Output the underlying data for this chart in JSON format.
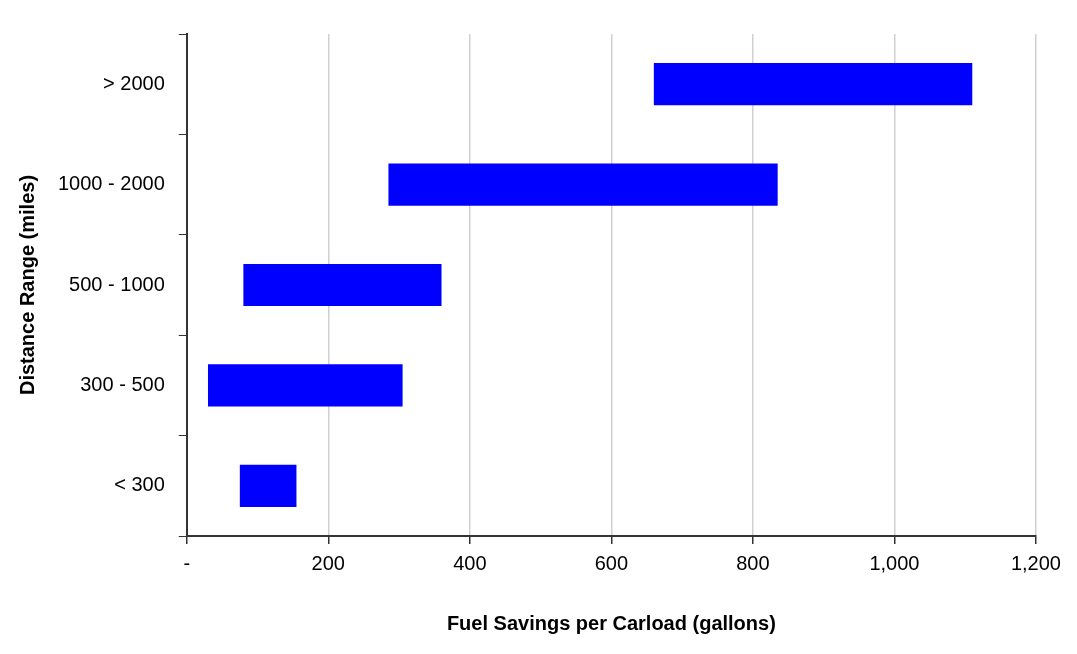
{
  "chart_data": {
    "type": "bar",
    "orientation": "horizontal",
    "xlabel": "Fuel Savings per Carload (gallons)",
    "ylabel": "Distance Range (miles)",
    "categories": [
      "> 2000",
      "1000 - 2000",
      "500 - 1000",
      "300 - 500",
      "< 300"
    ],
    "base": [
      660,
      285,
      80,
      30,
      75
    ],
    "values": [
      450,
      550,
      280,
      275,
      80
    ],
    "color": "#0000ff",
    "xlim": [
      0,
      1200
    ],
    "xticks": [
      {
        "value": 0,
        "label": "-"
      },
      200,
      400,
      600,
      800,
      {
        "value": 1000,
        "label": "1,000"
      },
      {
        "value": 1200,
        "label": "1,200"
      }
    ],
    "grid": "x",
    "legend": false
  }
}
